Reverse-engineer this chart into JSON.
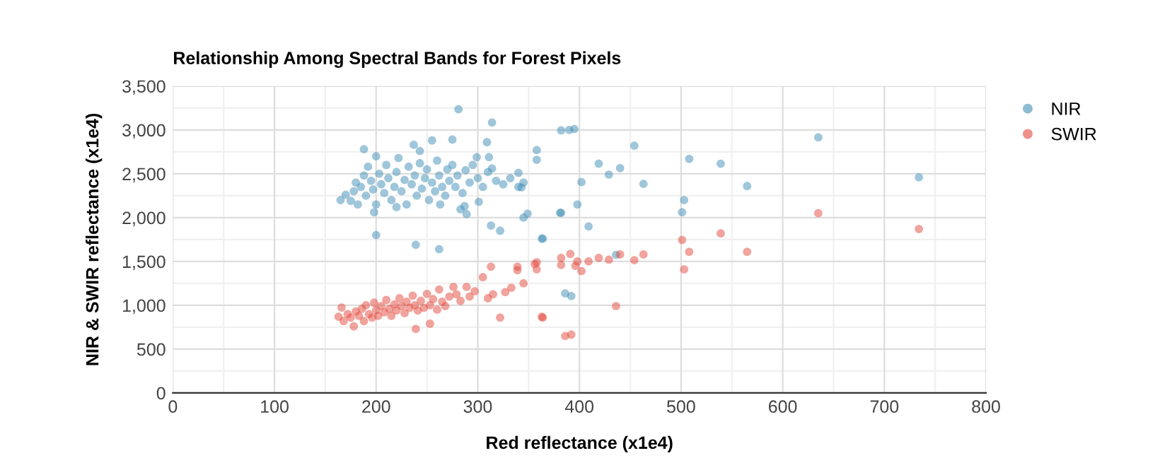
{
  "chart_data": {
    "type": "scatter",
    "title": "Relationship Among Spectral Bands for Forest Pixels",
    "xlabel": "Red reflectance (x1e4)",
    "ylabel": "NIR & SWIR reflectance (x1e4)",
    "xlim": [
      0,
      800
    ],
    "xticks": [
      0,
      100,
      200,
      300,
      400,
      500,
      600,
      700,
      800
    ],
    "ylim": [
      0,
      3500
    ],
    "yticks": [
      0,
      500,
      {
        "value": 1000,
        "label": "1,000"
      },
      {
        "value": 1500,
        "label": "1,500"
      },
      {
        "value": 2000,
        "label": "2,000"
      },
      {
        "value": 2500,
        "label": "2,500"
      },
      {
        "value": 3000,
        "label": "3,000"
      },
      {
        "value": 3500,
        "label": "3,500"
      }
    ],
    "grid": true,
    "legend": "right",
    "marker": "circle",
    "series": [
      {
        "name": "NIR",
        "color": "#3f8db6",
        "x": [
          165,
          170,
          175,
          178,
          180,
          182,
          185,
          188,
          190,
          192,
          195,
          197,
          200,
          200,
          203,
          205,
          208,
          210,
          212,
          215,
          218,
          220,
          222,
          225,
          228,
          230,
          232,
          235,
          238,
          240,
          243,
          245,
          248,
          250,
          252,
          255,
          258,
          260,
          262,
          265,
          268,
          270,
          272,
          275,
          278,
          280,
          285,
          288,
          292,
          295,
          300,
          305,
          310,
          318,
          325,
          332,
          340,
          345,
          188,
          243,
          198,
          220,
          263,
          287,
          281,
          314,
          200,
          239,
          262,
          313,
          322,
          363,
          381,
          349,
          345,
          301,
          289,
          283,
          309,
          275,
          255,
          237,
          358,
          358,
          340,
          343,
          314,
          311,
          299,
          382,
          390,
          395,
          454,
          419,
          440,
          429,
          402,
          463,
          508,
          539,
          635,
          565,
          734,
          503,
          398,
          382,
          501,
          409,
          364,
          436,
          386,
          392
        ],
        "values": [
          2200,
          2260,
          2190,
          2300,
          2400,
          2150,
          2350,
          2480,
          2250,
          2580,
          2420,
          2320,
          2700,
          2150,
          2500,
          2380,
          2280,
          2600,
          2450,
          2200,
          2350,
          2520,
          2680,
          2300,
          2430,
          2150,
          2580,
          2380,
          2480,
          2250,
          2620,
          2330,
          2450,
          2550,
          2200,
          2400,
          2300,
          2650,
          2480,
          2350,
          2250,
          2550,
          2420,
          2600,
          2350,
          2480,
          2280,
          2540,
          2400,
          2600,
          2450,
          2350,
          2520,
          2420,
          2380,
          2450,
          2350,
          2400,
          2780,
          2760,
          2060,
          2120,
          2150,
          2130,
          3235,
          3085,
          1800,
          1690,
          1640,
          1910,
          1850,
          1760,
          2055,
          2045,
          2000,
          2180,
          2040,
          2095,
          2860,
          2890,
          2880,
          2830,
          2770,
          2660,
          2510,
          2345,
          2560,
          2690,
          2690,
          2995,
          3000,
          3010,
          2820,
          2615,
          2565,
          2490,
          2405,
          2385,
          2670,
          2615,
          2915,
          2360,
          2460,
          2200,
          2150,
          2055,
          2060,
          1900,
          1760,
          1575,
          1135,
          1105
        ]
      },
      {
        "name": "SWIR",
        "color": "#e4473c",
        "x": [
          163,
          166,
          168,
          172,
          175,
          178,
          180,
          183,
          186,
          188,
          190,
          193,
          196,
          198,
          200,
          202,
          205,
          208,
          210,
          213,
          215,
          218,
          220,
          223,
          225,
          228,
          230,
          233,
          236,
          238,
          239,
          241,
          244,
          247,
          250,
          253,
          253,
          256,
          260,
          262,
          265,
          268,
          272,
          276,
          279,
          283,
          289,
          292,
          297,
          305,
          310,
          313,
          315,
          322,
          327,
          333,
          339,
          339,
          345,
          356,
          363,
          635,
          734,
          539,
          501,
          508,
          565,
          391,
          382,
          382,
          396,
          398,
          402,
          409,
          419,
          429,
          440,
          454,
          463,
          503,
          358,
          358,
          436,
          364,
          386,
          392
        ],
        "values": [
          870,
          975,
          820,
          900,
          860,
          760,
          930,
          880,
          960,
          820,
          1000,
          900,
          860,
          1030,
          945,
          880,
          990,
          920,
          1060,
          960,
          880,
          1010,
          940,
          1080,
          990,
          910,
          1040,
          970,
          1110,
          1000,
          730,
          940,
          1050,
          970,
          1130,
          790,
          1000,
          1070,
          950,
          1180,
          1040,
          990,
          1100,
          1210,
          1125,
          1050,
          1210,
          1100,
          1160,
          1320,
          1080,
          1440,
          1125,
          860,
          1150,
          1200,
          1400,
          1440,
          1250,
          1470,
          870,
          2050,
          1870,
          1820,
          1745,
          1610,
          1610,
          1585,
          1540,
          1460,
          1450,
          1500,
          1390,
          1500,
          1540,
          1520,
          1580,
          1515,
          1580,
          1410,
          1490,
          1410,
          990,
          860,
          650,
          665
        ]
      }
    ]
  }
}
